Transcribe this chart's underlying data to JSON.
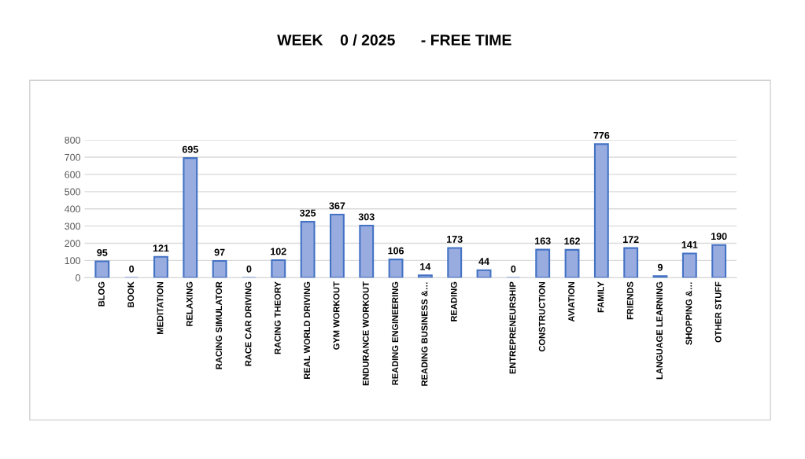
{
  "chart_data": {
    "type": "bar",
    "title": "WEEK    0 / 2025      - FREE TIME",
    "categories": [
      "BLOG",
      "BOOK",
      "MEDITATION",
      "RELAXING",
      "RACING SIMULATOR",
      "RACE CAR DRIVING",
      "RACING THEORY",
      "REAL WORLD DRIVING",
      "GYM WORKOUT",
      "ENDURANCE WORKOUT",
      "READING ENGINEERING",
      "READING BUSINESS &…",
      "READING",
      null,
      "ENTREPRENEURSHIP",
      "CONSTRUCTION",
      "AVIATION",
      "FAMILY",
      "FRIENDS",
      "LANGUAGE LEARNING",
      "SHOPPING &…",
      "OTHER STUFF"
    ],
    "values": [
      95,
      0,
      121,
      695,
      97,
      0,
      102,
      325,
      367,
      303,
      106,
      14,
      173,
      44,
      0,
      163,
      162,
      776,
      172,
      9,
      141,
      190
    ],
    "color": "#98ace0",
    "ylim": [
      0,
      800
    ],
    "yticks": [
      0,
      100,
      200,
      300,
      400,
      500,
      600,
      700,
      800
    ],
    "grid": "y",
    "data_labels": true
  }
}
